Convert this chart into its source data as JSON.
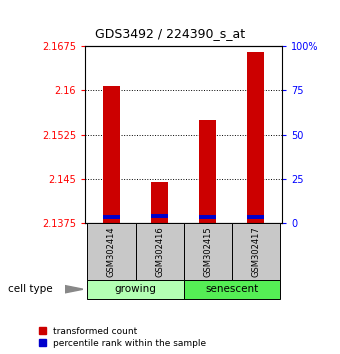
{
  "title": "GDS3492 / 224390_s_at",
  "samples": [
    "GSM302414",
    "GSM302416",
    "GSM302415",
    "GSM302417"
  ],
  "red_values": [
    2.1607,
    2.1445,
    2.155,
    2.1665
  ],
  "blue_values": [
    2.1385,
    2.1387,
    2.1385,
    2.1385
  ],
  "ymin": 2.1375,
  "ymax": 2.1675,
  "yticks": [
    2.1375,
    2.145,
    2.1525,
    2.16,
    2.1675
  ],
  "ytick_labels": [
    "2.1375",
    "2.145",
    "2.1525",
    "2.16",
    "2.1675"
  ],
  "right_yticks": [
    0,
    25,
    50,
    75,
    100
  ],
  "right_ytick_labels": [
    "0",
    "25",
    "50",
    "75",
    "100%"
  ],
  "bar_color": "#cc0000",
  "blue_color": "#0000cc",
  "legend_red": "transformed count",
  "legend_blue": "percentile rank within the sample",
  "cell_type_label": "cell type",
  "group_color_growing": "#b3ffb3",
  "group_color_senescent": "#55ee55",
  "sample_box_color": "#c8c8c8"
}
